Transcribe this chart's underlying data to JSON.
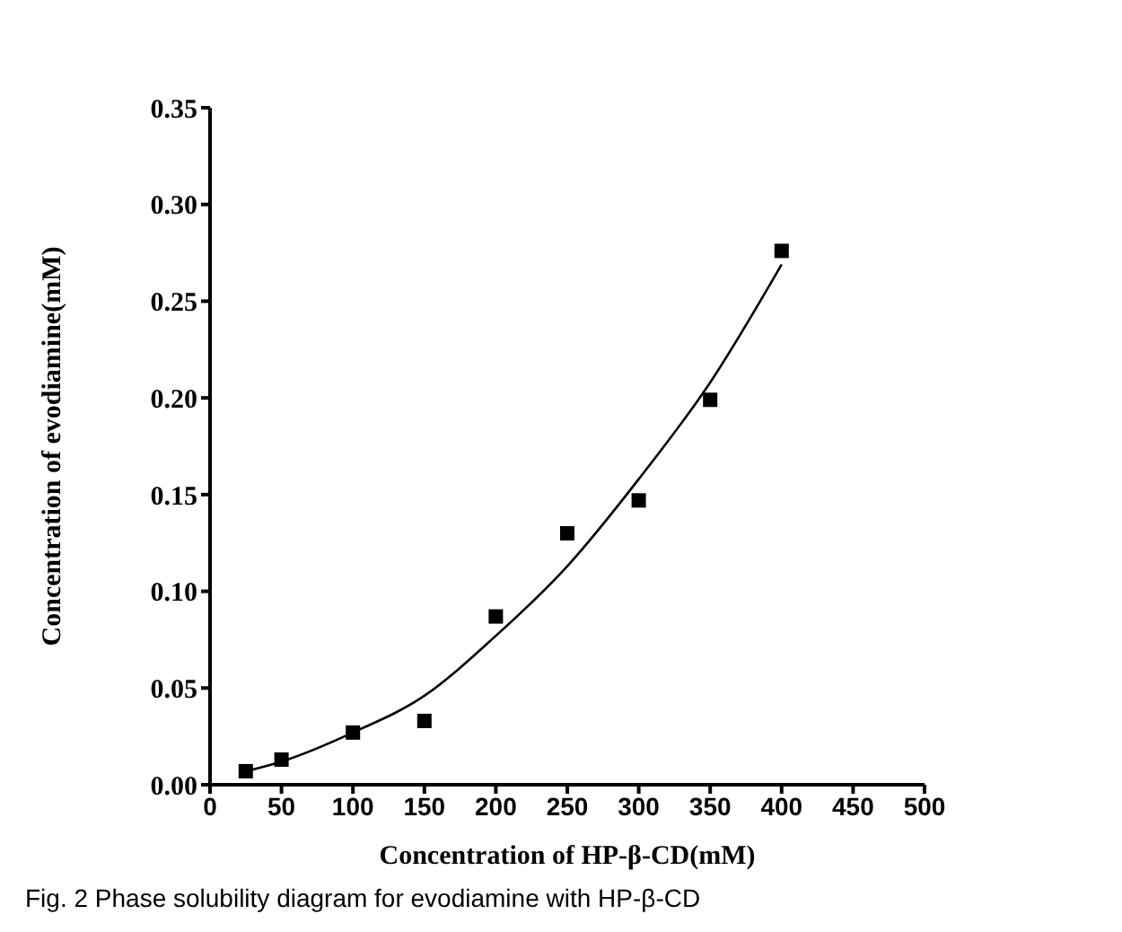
{
  "chart_data": {
    "type": "scatter",
    "xlabel": "Concentration of HP-β-CD(mM)",
    "ylabel": "Concentration of evodiamine(mM)",
    "annotations": [
      "Fig. 2 Phase solubility diagram for evodiamine with HP-β-CD"
    ],
    "x": [
      25,
      50,
      100,
      150,
      200,
      250,
      300,
      350,
      400
    ],
    "series": [
      {
        "color": "#000000",
        "marker": "square",
        "values": [
          0.007,
          0.013,
          0.027,
          0.033,
          0.087,
          0.13,
          0.147,
          0.199,
          0.276
        ]
      },
      {
        "type": "line",
        "color": "#000000",
        "marker": "none",
        "line_style": "solid",
        "x": [
          25,
          50,
          100,
          150,
          200,
          250,
          300,
          350,
          400
        ],
        "values": [
          0.007,
          0.012,
          0.027,
          0.046,
          0.077,
          0.113,
          0.158,
          0.208,
          0.269
        ]
      }
    ],
    "xlim": [
      0,
      500
    ],
    "xticks": [
      0,
      50,
      100,
      150,
      200,
      250,
      300,
      350,
      400,
      450,
      500
    ],
    "ylim": [
      0,
      0.35
    ],
    "yticks": [
      {
        "value": 0,
        "label": "0.00"
      },
      0.05,
      {
        "value": 0.1,
        "label": "0.10"
      },
      0.15,
      {
        "value": 0.2,
        "label": "0.20"
      },
      0.25,
      {
        "value": 0.3,
        "label": "0.30"
      },
      0.35
    ],
    "grid": false,
    "legend": false
  }
}
